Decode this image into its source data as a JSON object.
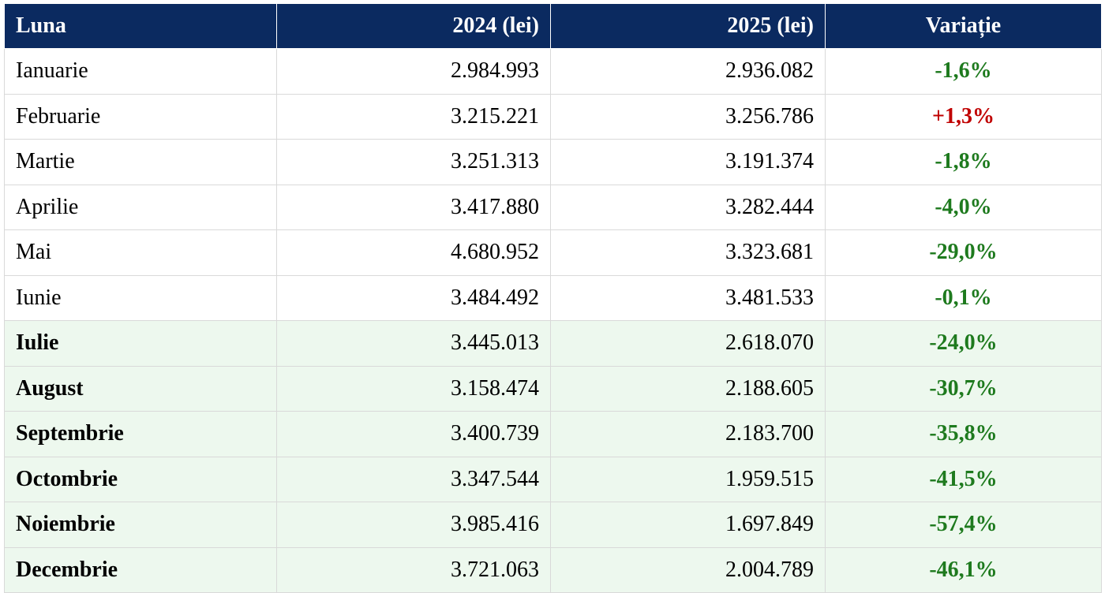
{
  "table": {
    "headers": [
      "Luna",
      "2024 (lei)",
      "2025 (lei)",
      "Variație"
    ],
    "rows": [
      {
        "month": "Ianuarie",
        "y2024": "2.984.993",
        "y2025": "2.936.082",
        "variation": "-1,6%"
      },
      {
        "month": "Februarie",
        "y2024": "3.215.221",
        "y2025": "3.256.786",
        "variation": "+1,3%"
      },
      {
        "month": "Martie",
        "y2024": "3.251.313",
        "y2025": "3.191.374",
        "variation": "-1,8%"
      },
      {
        "month": "Aprilie",
        "y2024": "3.417.880",
        "y2025": "3.282.444",
        "variation": "-4,0%"
      },
      {
        "month": "Mai",
        "y2024": "4.680.952",
        "y2025": "3.323.681",
        "variation": "-29,0%"
      },
      {
        "month": "Iunie",
        "y2024": "3.484.492",
        "y2025": "3.481.533",
        "variation": "-0,1%"
      },
      {
        "month": "Iulie",
        "y2024": "3.445.013",
        "y2025": "2.618.070",
        "variation": "-24,0%"
      },
      {
        "month": "August",
        "y2024": "3.158.474",
        "y2025": "2.188.605",
        "variation": "-30,7%"
      },
      {
        "month": "Septembrie",
        "y2024": "3.400.739",
        "y2025": "2.183.700",
        "variation": "-35,8%"
      },
      {
        "month": "Octombrie",
        "y2024": "3.347.544",
        "y2025": "1.959.515",
        "variation": "-41,5%"
      },
      {
        "month": "Noiembrie",
        "y2024": "3.985.416",
        "y2025": "1.697.849",
        "variation": "-57,4%"
      },
      {
        "month": "Decembrie",
        "y2024": "3.721.063",
        "y2025": "2.004.789",
        "variation": "-46,1%"
      }
    ]
  },
  "colors": {
    "header_bg": "#0b2a60",
    "highlight_row_bg": "#edf8ee",
    "negative_variation": "#1e7a1e",
    "positive_variation": "#c00000"
  }
}
